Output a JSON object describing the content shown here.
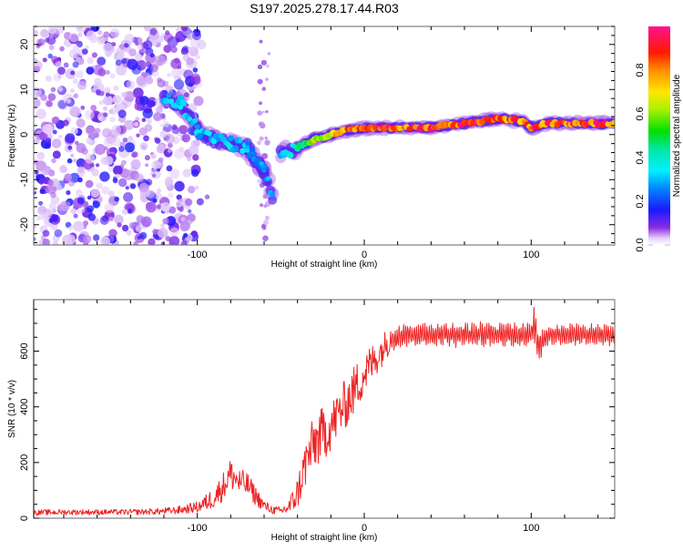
{
  "figure_title": "S197.2025.278.17.44.R03",
  "chart_data": [
    {
      "type": "heatmap",
      "title": "S197.2025.278.17.44.R03",
      "xlabel": "Height of straight line (km)",
      "ylabel": "Frequency (Hz)",
      "xlim": [
        -198,
        150
      ],
      "ylim": [
        -24.5,
        24
      ],
      "xticks": [
        -100,
        0,
        100
      ],
      "xtick_labels": [
        "-100",
        "0",
        "100"
      ],
      "yticks": [
        -20,
        -10,
        0,
        10,
        20
      ],
      "ytick_labels": [
        "-20",
        "-10",
        "0",
        "10",
        "20"
      ],
      "colorbar": {
        "label": "Normalized spectral amplitude",
        "range": [
          0,
          1
        ],
        "ticks": [
          0.0,
          0.2,
          0.4,
          0.6,
          0.8
        ],
        "tick_labels": [
          "0.0",
          "0.2",
          "0.4",
          "0.6",
          "0.8"
        ],
        "colormap": [
          "#ffffff",
          "#d8b8f8",
          "#8a2be2",
          "#1010ff",
          "#00c8ff",
          "#00ffd0",
          "#00e000",
          "#c8f000",
          "#ffe000",
          "#ff8000",
          "#ff0000",
          "#ff1090"
        ]
      },
      "ridge": {
        "description": "Dominant frequency track vs height",
        "points": [
          {
            "x": -120,
            "y": 8,
            "amp": 0.3
          },
          {
            "x": -110,
            "y": 7,
            "amp": 0.35
          },
          {
            "x": -100,
            "y": 1,
            "amp": 0.35
          },
          {
            "x": -90,
            "y": -1,
            "amp": 0.35
          },
          {
            "x": -80,
            "y": -2,
            "amp": 0.35
          },
          {
            "x": -70,
            "y": -3,
            "amp": 0.35
          },
          {
            "x": -60,
            "y": -8,
            "amp": 0.3
          },
          {
            "x": -55,
            "y": -14,
            "amp": 0.3
          },
          {
            "x": -50,
            "y": -4,
            "amp": 0.35
          },
          {
            "x": -40,
            "y": -3,
            "amp": 0.5
          },
          {
            "x": -30,
            "y": -1,
            "amp": 0.7
          },
          {
            "x": -20,
            "y": 0,
            "amp": 0.8
          },
          {
            "x": -10,
            "y": 1,
            "amp": 0.85
          },
          {
            "x": 0,
            "y": 1.5,
            "amp": 0.9
          },
          {
            "x": 20,
            "y": 1.5,
            "amp": 0.95
          },
          {
            "x": 40,
            "y": 1.5,
            "amp": 0.95
          },
          {
            "x": 60,
            "y": 2.5,
            "amp": 0.95
          },
          {
            "x": 80,
            "y": 3.5,
            "amp": 0.95
          },
          {
            "x": 95,
            "y": 3,
            "amp": 0.9
          },
          {
            "x": 100,
            "y": 1.5,
            "amp": 0.9
          },
          {
            "x": 110,
            "y": 2.5,
            "amp": 0.95
          },
          {
            "x": 150,
            "y": 2.5,
            "amp": 0.95
          }
        ]
      },
      "noise_region_x": [
        -198,
        -100
      ]
    },
    {
      "type": "line",
      "xlabel": "Height of straight line (km)",
      "ylabel": "SNR (10 * v/v)",
      "xlim": [
        -198,
        150
      ],
      "ylim": [
        0,
        785
      ],
      "xticks": [
        -100,
        0,
        100
      ],
      "xtick_labels": [
        "-100",
        "0",
        "100"
      ],
      "yticks": [
        0,
        200,
        400,
        600
      ],
      "ytick_labels": [
        "0",
        "200",
        "400",
        "600"
      ],
      "series": [
        {
          "name": "SNR",
          "color": "#ee2222",
          "x": [
            -198,
            -180,
            -160,
            -140,
            -120,
            -110,
            -100,
            -95,
            -90,
            -85,
            -80,
            -75,
            -70,
            -65,
            -60,
            -55,
            -50,
            -45,
            -40,
            -35,
            -30,
            -25,
            -20,
            -15,
            -10,
            -5,
            0,
            5,
            10,
            15,
            20,
            25,
            30,
            40,
            50,
            60,
            70,
            80,
            90,
            100,
            102,
            104,
            110,
            120,
            130,
            140,
            150
          ],
          "y": [
            20,
            22,
            22,
            22,
            25,
            30,
            40,
            55,
            75,
            110,
            160,
            130,
            120,
            80,
            45,
            30,
            25,
            40,
            90,
            200,
            270,
            300,
            330,
            380,
            420,
            470,
            520,
            560,
            600,
            640,
            650,
            660,
            660,
            660,
            660,
            660,
            660,
            660,
            660,
            660,
            700,
            620,
            660,
            660,
            660,
            660,
            660
          ],
          "amplitude_of_oscillation": [
            10,
            10,
            10,
            10,
            12,
            15,
            20,
            30,
            40,
            50,
            60,
            50,
            45,
            35,
            20,
            15,
            15,
            30,
            60,
            90,
            100,
            100,
            90,
            90,
            90,
            90,
            80,
            70,
            60,
            50,
            45,
            45,
            45,
            45,
            45,
            45,
            45,
            45,
            45,
            45,
            80,
            70,
            40,
            40,
            40,
            40,
            40
          ]
        }
      ]
    }
  ]
}
